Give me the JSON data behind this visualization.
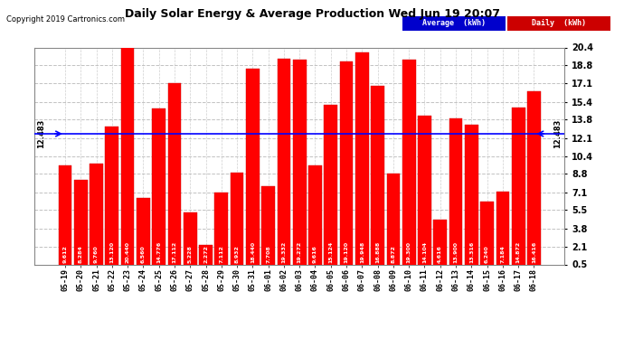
{
  "title": "Daily Solar Energy & Average Production Wed Jun 19 20:07",
  "copyright": "Copyright 2019 Cartronics.com",
  "average_value": 12.483,
  "average_label": "12.483",
  "categories": [
    "05-19",
    "05-20",
    "05-21",
    "05-22",
    "05-23",
    "05-24",
    "05-25",
    "05-26",
    "05-27",
    "05-28",
    "05-29",
    "05-30",
    "05-31",
    "06-01",
    "06-02",
    "06-03",
    "06-04",
    "06-05",
    "06-06",
    "06-07",
    "06-08",
    "06-09",
    "06-10",
    "06-11",
    "06-12",
    "06-13",
    "06-14",
    "06-15",
    "06-16",
    "06-17",
    "06-18"
  ],
  "values": [
    9.612,
    8.284,
    9.76,
    13.12,
    20.44,
    6.56,
    14.776,
    17.112,
    5.228,
    2.272,
    7.112,
    8.932,
    18.44,
    7.708,
    19.332,
    19.272,
    9.616,
    15.124,
    19.12,
    19.948,
    16.888,
    8.872,
    19.3,
    14.104,
    4.616,
    13.9,
    13.316,
    6.24,
    7.184,
    14.872,
    16.416
  ],
  "bar_color": "#ff0000",
  "average_line_color": "#0000ff",
  "background_color": "#ffffff",
  "grid_color": "#bbbbbb",
  "ylim": [
    0.5,
    20.4
  ],
  "yticks": [
    0.5,
    2.1,
    3.8,
    5.5,
    7.1,
    8.8,
    10.4,
    12.1,
    13.8,
    15.4,
    17.1,
    18.8,
    20.4
  ],
  "legend_avg_bg": "#0000cc",
  "legend_daily_bg": "#cc0000",
  "legend_avg_text": "Average  (kWh)",
  "legend_daily_text": "Daily  (kWh)",
  "title_fontsize": 9,
  "copyright_fontsize": 6,
  "bar_label_fontsize": 5,
  "xtick_fontsize": 6,
  "ytick_fontsize": 7
}
